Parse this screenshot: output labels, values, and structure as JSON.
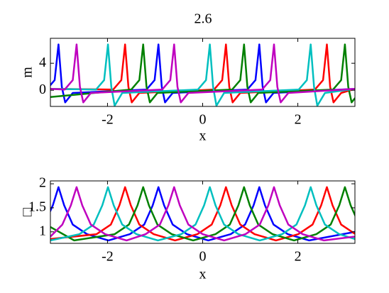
{
  "chart_data": [
    {
      "type": "line",
      "title": "2.6",
      "xlabel": "x",
      "ylabel": "m",
      "xlim": [
        -3.2,
        3.2
      ],
      "ylim": [
        -2.4,
        7.7
      ],
      "xticks": [
        -2,
        0,
        2
      ],
      "yticks": [
        0,
        4
      ],
      "series": [
        {
          "color": "#0000ff",
          "x": [
            -3.28,
            -3.11,
            -3.03,
            -2.96,
            -2.89,
            -2.73,
            -1.18,
            -1.01,
            -0.93,
            -0.86,
            -0.79,
            -0.63,
            0.94,
            1.11,
            1.19,
            1.26,
            1.33,
            1.49,
            3.2
          ],
          "values": [
            0.1,
            1.5,
            6.8,
            0.5,
            -1.8,
            -0.4,
            0.1,
            1.5,
            6.8,
            0.5,
            -1.8,
            -0.4,
            0.1,
            1.5,
            6.8,
            0.5,
            -1.8,
            -0.4,
            0.2
          ]
        },
        {
          "color": "#ff0000",
          "x": [
            -3.2,
            -1.88,
            -1.71,
            -1.63,
            -1.56,
            -1.49,
            -1.33,
            0.24,
            0.41,
            0.49,
            0.56,
            0.63,
            0.79,
            2.36,
            2.53,
            2.61,
            2.68,
            2.75,
            2.91,
            3.2
          ],
          "values": [
            0.2,
            0.1,
            1.5,
            6.8,
            0.5,
            -1.8,
            -0.4,
            0.1,
            1.5,
            6.8,
            0.5,
            -1.8,
            -0.4,
            0.1,
            1.5,
            6.8,
            0.5,
            -1.8,
            -0.4,
            0.2
          ]
        },
        {
          "color": "#008000",
          "x": [
            -3.2,
            -1.5,
            -1.33,
            -1.25,
            -1.18,
            -1.11,
            -0.95,
            0.62,
            0.79,
            0.87,
            0.94,
            1.01,
            1.17,
            2.74,
            2.91,
            2.99,
            3.06,
            3.13,
            3.29
          ],
          "values": [
            -1.0,
            0.1,
            1.5,
            6.8,
            0.5,
            -1.8,
            -0.4,
            0.1,
            1.5,
            6.8,
            0.5,
            -1.8,
            -0.4,
            0.1,
            1.5,
            6.8,
            0.5,
            -1.8,
            -0.4
          ]
        },
        {
          "color": "#00bfbf",
          "x": [
            -3.2,
            -2.24,
            -2.07,
            -1.99,
            -1.92,
            -1.85,
            -1.69,
            -0.1,
            0.07,
            0.15,
            0.22,
            0.29,
            0.45,
            2.02,
            2.19,
            2.27,
            2.34,
            2.41,
            2.57,
            3.2
          ],
          "values": [
            0.2,
            0.1,
            1.5,
            6.8,
            0.5,
            -2.3,
            -0.4,
            0.1,
            1.5,
            6.8,
            0.5,
            -2.3,
            -0.4,
            0.1,
            1.5,
            6.8,
            0.5,
            -2.3,
            -0.4,
            0.2
          ]
        },
        {
          "color": "#bf00bf",
          "x": [
            -3.2,
            -2.9,
            -2.73,
            -2.65,
            -2.58,
            -2.51,
            -2.35,
            -0.85,
            -0.68,
            -0.6,
            -0.53,
            -0.46,
            -0.3,
            1.25,
            1.42,
            1.5,
            1.57,
            1.64,
            1.8,
            3.2
          ],
          "values": [
            0.2,
            0.1,
            1.5,
            6.8,
            0.5,
            -1.8,
            -0.4,
            0.1,
            1.5,
            6.8,
            0.5,
            -1.8,
            -0.4,
            0.1,
            1.5,
            6.8,
            0.5,
            -1.8,
            -0.4,
            0.2
          ]
        }
      ]
    },
    {
      "type": "line",
      "xlabel": "x",
      "ylabel": "□",
      "xlim": [
        -3.2,
        3.2
      ],
      "ylim": [
        0.76,
        2.06
      ],
      "xticks": [
        -2,
        0,
        2
      ],
      "yticks": [
        1,
        1.5,
        2
      ],
      "series": [
        {
          "color": "#0000ff",
          "x": [
            -3.63,
            -3.33,
            -3.15,
            -3.03,
            -2.91,
            -2.73,
            -2.43,
            -1.98,
            -1.53,
            -1.23,
            -1.05,
            -0.93,
            -0.81,
            -0.63,
            -0.33,
            0.12,
            0.59,
            0.89,
            1.07,
            1.19,
            1.31,
            1.49,
            1.79,
            2.24,
            3.2
          ],
          "values": [
            0.95,
            1.15,
            1.55,
            1.93,
            1.55,
            1.15,
            0.95,
            0.82,
            0.95,
            1.15,
            1.55,
            1.93,
            1.55,
            1.15,
            0.95,
            0.82,
            0.95,
            1.15,
            1.55,
            1.93,
            1.55,
            1.15,
            0.95,
            0.82,
            1.0
          ]
        },
        {
          "color": "#ff0000",
          "x": [
            -3.2,
            -2.23,
            -1.93,
            -1.75,
            -1.63,
            -1.51,
            -1.33,
            -1.03,
            -0.58,
            -0.11,
            0.19,
            0.37,
            0.49,
            0.61,
            0.79,
            1.09,
            1.54,
            2.01,
            2.31,
            2.49,
            2.61,
            2.73,
            2.91,
            3.21
          ],
          "values": [
            0.85,
            0.95,
            1.15,
            1.55,
            1.93,
            1.55,
            1.15,
            0.95,
            0.82,
            0.95,
            1.15,
            1.55,
            1.93,
            1.55,
            1.15,
            0.95,
            0.82,
            0.95,
            1.15,
            1.55,
            1.93,
            1.55,
            1.15,
            0.95
          ]
        },
        {
          "color": "#008000",
          "x": [
            -3.2,
            -2.7,
            -1.85,
            -1.55,
            -1.37,
            -1.25,
            -1.13,
            -0.95,
            -0.65,
            -0.2,
            0.27,
            0.57,
            0.75,
            0.87,
            0.99,
            1.17,
            1.47,
            1.92,
            2.39,
            2.69,
            2.87,
            2.99,
            3.11,
            3.29
          ],
          "values": [
            1.1,
            0.82,
            0.95,
            1.15,
            1.55,
            1.93,
            1.55,
            1.15,
            0.95,
            0.82,
            0.95,
            1.15,
            1.55,
            1.93,
            1.55,
            1.15,
            0.95,
            0.82,
            0.95,
            1.15,
            1.55,
            1.93,
            1.55,
            1.15
          ]
        },
        {
          "color": "#00bfbf",
          "x": [
            -3.2,
            -2.59,
            -2.29,
            -2.11,
            -1.99,
            -1.87,
            -1.69,
            -1.39,
            -0.94,
            -0.45,
            -0.15,
            0.03,
            0.15,
            0.27,
            0.45,
            0.75,
            1.2,
            1.67,
            1.97,
            2.15,
            2.27,
            2.39,
            2.57,
            2.87,
            3.2
          ],
          "values": [
            0.82,
            0.95,
            1.15,
            1.55,
            1.93,
            1.55,
            1.15,
            0.95,
            0.82,
            0.95,
            1.15,
            1.55,
            1.93,
            1.55,
            1.15,
            0.95,
            0.82,
            0.95,
            1.15,
            1.55,
            1.93,
            1.55,
            1.15,
            0.95,
            0.85
          ]
        },
        {
          "color": "#bf00bf",
          "x": [
            -3.2,
            -2.95,
            -2.77,
            -2.65,
            -2.53,
            -2.35,
            -2.05,
            -1.6,
            -1.2,
            -0.9,
            -0.72,
            -0.6,
            -0.48,
            -0.3,
            0,
            0.45,
            0.9,
            1.2,
            1.38,
            1.5,
            1.62,
            1.8,
            2.1,
            2.55,
            3.2
          ],
          "values": [
            0.9,
            1.15,
            1.55,
            1.93,
            1.55,
            1.15,
            0.95,
            0.82,
            0.95,
            1.15,
            1.55,
            1.93,
            1.55,
            1.15,
            0.95,
            0.82,
            0.95,
            1.15,
            1.55,
            1.93,
            1.55,
            1.15,
            0.95,
            0.82,
            0.9
          ]
        }
      ]
    }
  ]
}
